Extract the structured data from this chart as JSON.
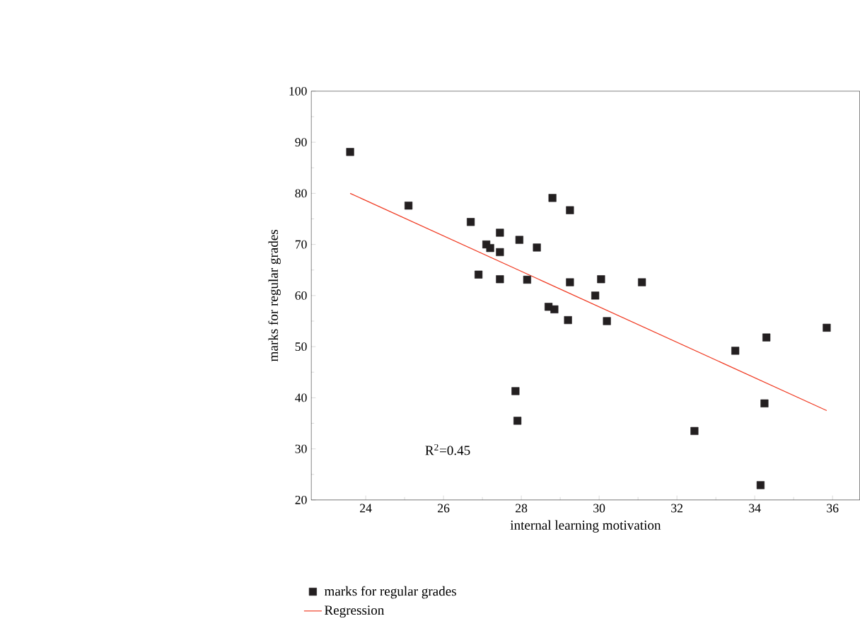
{
  "chart_data": {
    "type": "scatter",
    "xlabel": "internal learning motivation",
    "ylabel": "marks for regular grades",
    "xlim": [
      22.6,
      36.7
    ],
    "ylim": [
      20,
      100
    ],
    "xticks": [
      24,
      26,
      28,
      30,
      32,
      34,
      36
    ],
    "yticks": [
      20,
      30,
      40,
      50,
      60,
      70,
      80,
      90,
      100
    ],
    "grid": false,
    "legend": "bottom",
    "annotations": [
      "R$^{2}$=0.45"
    ],
    "series": [
      {
        "name": "marks for regular grades",
        "color": "#231f20",
        "marker": "square",
        "x": [
          23.6,
          25.1,
          26.7,
          26.9,
          27.1,
          27.2,
          27.45,
          27.45,
          27.45,
          27.85,
          27.9,
          27.95,
          28.15,
          28.4,
          28.7,
          28.85,
          28.8,
          29.2,
          29.25,
          29.25,
          29.9,
          30.05,
          30.2,
          31.1,
          32.45,
          33.5,
          34.15,
          34.25,
          34.3,
          35.85
        ],
        "values": [
          88.1,
          77.6,
          74.4,
          64.1,
          70,
          69.3,
          72.3,
          68.5,
          63.2,
          41.3,
          35.5,
          70.9,
          63.1,
          69.4,
          57.8,
          57.3,
          79.1,
          55.2,
          76.7,
          62.6,
          60,
          63.2,
          55,
          62.6,
          33.5,
          49.2,
          22.9,
          38.9,
          51.8,
          53.7
        ]
      },
      {
        "name": "Regression",
        "type": "line",
        "color": "#f03c24",
        "marker": "none",
        "line_style": "solid",
        "x": [
          23.6,
          35.85
        ],
        "values": [
          80,
          37.5
        ]
      }
    ]
  }
}
